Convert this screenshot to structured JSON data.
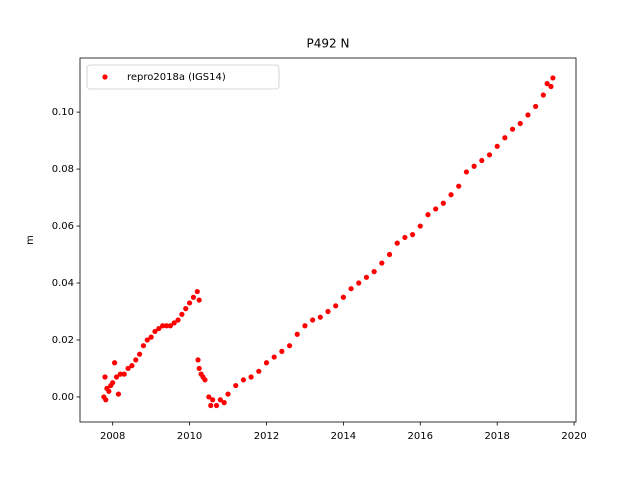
{
  "chart_data": {
    "type": "scatter",
    "title": "P492 N",
    "y_label": "m",
    "xlim": [
      2007.15,
      2020.05
    ],
    "xticks": [
      2008,
      2010,
      2012,
      2014,
      2016,
      2018,
      2020
    ],
    "ylim": [
      -0.0088,
      0.119
    ],
    "yticks": [
      {
        "value": 0,
        "label": "0.00"
      },
      0.02,
      0.04,
      0.06,
      0.08,
      {
        "value": 0.1,
        "label": "0.10"
      }
    ],
    "legend": "upper left",
    "series": [
      {
        "name": "repro2018a (IGS14)",
        "color": "#ff0000",
        "x": [
          2007.77,
          2007.8,
          2007.82,
          2007.85,
          2007.9,
          2007.95,
          2008.0,
          2008.05,
          2008.1,
          2008.15,
          2008.2,
          2008.3,
          2008.4,
          2008.5,
          2008.6,
          2008.7,
          2008.8,
          2008.9,
          2009.0,
          2009.1,
          2009.2,
          2009.3,
          2009.4,
          2009.5,
          2009.6,
          2009.7,
          2009.8,
          2009.9,
          2010.0,
          2010.1,
          2010.2,
          2010.25,
          2010.22,
          2010.25,
          2010.3,
          2010.35,
          2010.4,
          2010.5,
          2010.55,
          2010.6,
          2010.7,
          2010.8,
          2010.9,
          2011.0,
          2011.2,
          2011.4,
          2011.6,
          2011.8,
          2012.0,
          2012.2,
          2012.4,
          2012.6,
          2012.8,
          2013.0,
          2013.2,
          2013.4,
          2013.6,
          2013.8,
          2014.0,
          2014.2,
          2014.4,
          2014.6,
          2014.8,
          2015.0,
          2015.2,
          2015.4,
          2015.6,
          2015.8,
          2016.0,
          2016.2,
          2016.4,
          2016.6,
          2016.8,
          2017.0,
          2017.2,
          2017.4,
          2017.6,
          2017.8,
          2018.0,
          2018.2,
          2018.4,
          2018.6,
          2018.8,
          2019.0,
          2019.2,
          2019.3,
          2019.4,
          2019.45
        ],
        "values": [
          0.0,
          0.007,
          -0.001,
          0.003,
          0.002,
          0.004,
          0.005,
          0.012,
          0.007,
          0.001,
          0.008,
          0.008,
          0.01,
          0.011,
          0.013,
          0.015,
          0.018,
          0.02,
          0.021,
          0.023,
          0.024,
          0.025,
          0.025,
          0.025,
          0.026,
          0.027,
          0.029,
          0.031,
          0.033,
          0.035,
          0.037,
          0.034,
          0.013,
          0.01,
          0.008,
          0.007,
          0.006,
          0.0,
          -0.003,
          -0.001,
          -0.003,
          -0.001,
          -0.002,
          0.001,
          0.004,
          0.006,
          0.007,
          0.009,
          0.012,
          0.014,
          0.016,
          0.018,
          0.022,
          0.025,
          0.027,
          0.028,
          0.03,
          0.032,
          0.035,
          0.038,
          0.04,
          0.042,
          0.044,
          0.047,
          0.05,
          0.054,
          0.056,
          0.057,
          0.06,
          0.064,
          0.066,
          0.068,
          0.071,
          0.074,
          0.079,
          0.081,
          0.083,
          0.085,
          0.088,
          0.091,
          0.094,
          0.096,
          0.099,
          0.102,
          0.106,
          0.11,
          0.109,
          0.112
        ]
      }
    ]
  }
}
